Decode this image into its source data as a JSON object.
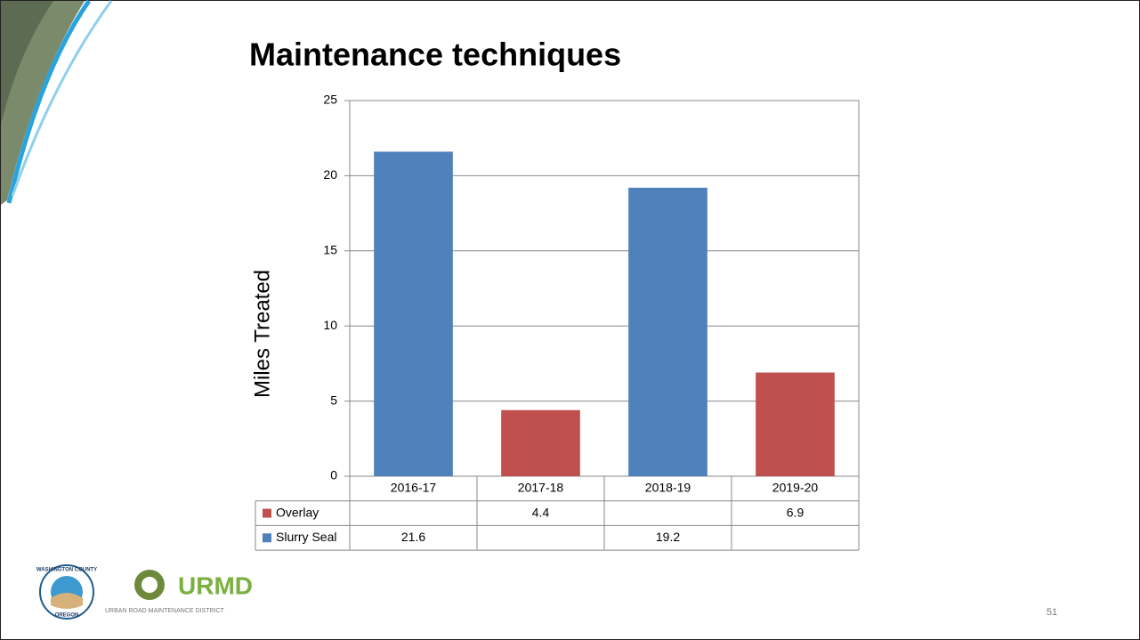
{
  "chart_data": {
    "type": "bar",
    "stacked": true,
    "title": "Maintenance techniques",
    "y_label": "Miles Treated",
    "categories": [
      "2016-17",
      "2017-18",
      "2018-19",
      "2019-20"
    ],
    "series": [
      {
        "name": "Overlay",
        "color": "#c0504d",
        "values": [
          null,
          4.4,
          null,
          6.9
        ]
      },
      {
        "name": "Slurry Seal",
        "color": "#4f81bd",
        "values": [
          21.6,
          null,
          19.2,
          null
        ]
      }
    ],
    "ylim": [
      0,
      25
    ],
    "yticks": [
      0,
      5,
      10,
      15,
      20,
      25
    ],
    "grid": true,
    "data_table": true
  },
  "footer": {
    "county_logo_top": "WASHINGTON COUNTY",
    "county_logo_bottom": "OREGON",
    "logo_title": "URMD",
    "logo_subtitle": "URBAN ROAD MAINTENANCE DISTRICT",
    "page_number": "51"
  }
}
